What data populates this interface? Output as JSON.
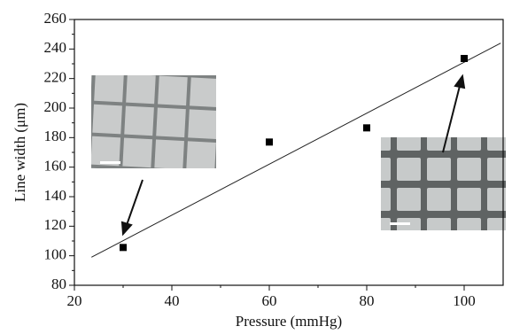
{
  "chart_data": {
    "type": "scatter",
    "x_label": "Pressure (mmHg)",
    "y_label": "Line width (μm)",
    "xlim": [
      20,
      108
    ],
    "ylim": [
      80,
      260
    ],
    "xticks": [
      20,
      40,
      60,
      80,
      100
    ],
    "yticks": [
      80,
      100,
      120,
      140,
      160,
      180,
      200,
      220,
      240,
      260
    ],
    "series": [
      {
        "color": "#000000",
        "x": [
          30,
          60,
          80,
          100
        ],
        "values": [
          105.6,
          177,
          186.6,
          233.6
        ]
      }
    ],
    "fit": {
      "color": "#222222",
      "x": [
        23.5,
        107.5
      ],
      "values": [
        99,
        244
      ]
    }
  }
}
